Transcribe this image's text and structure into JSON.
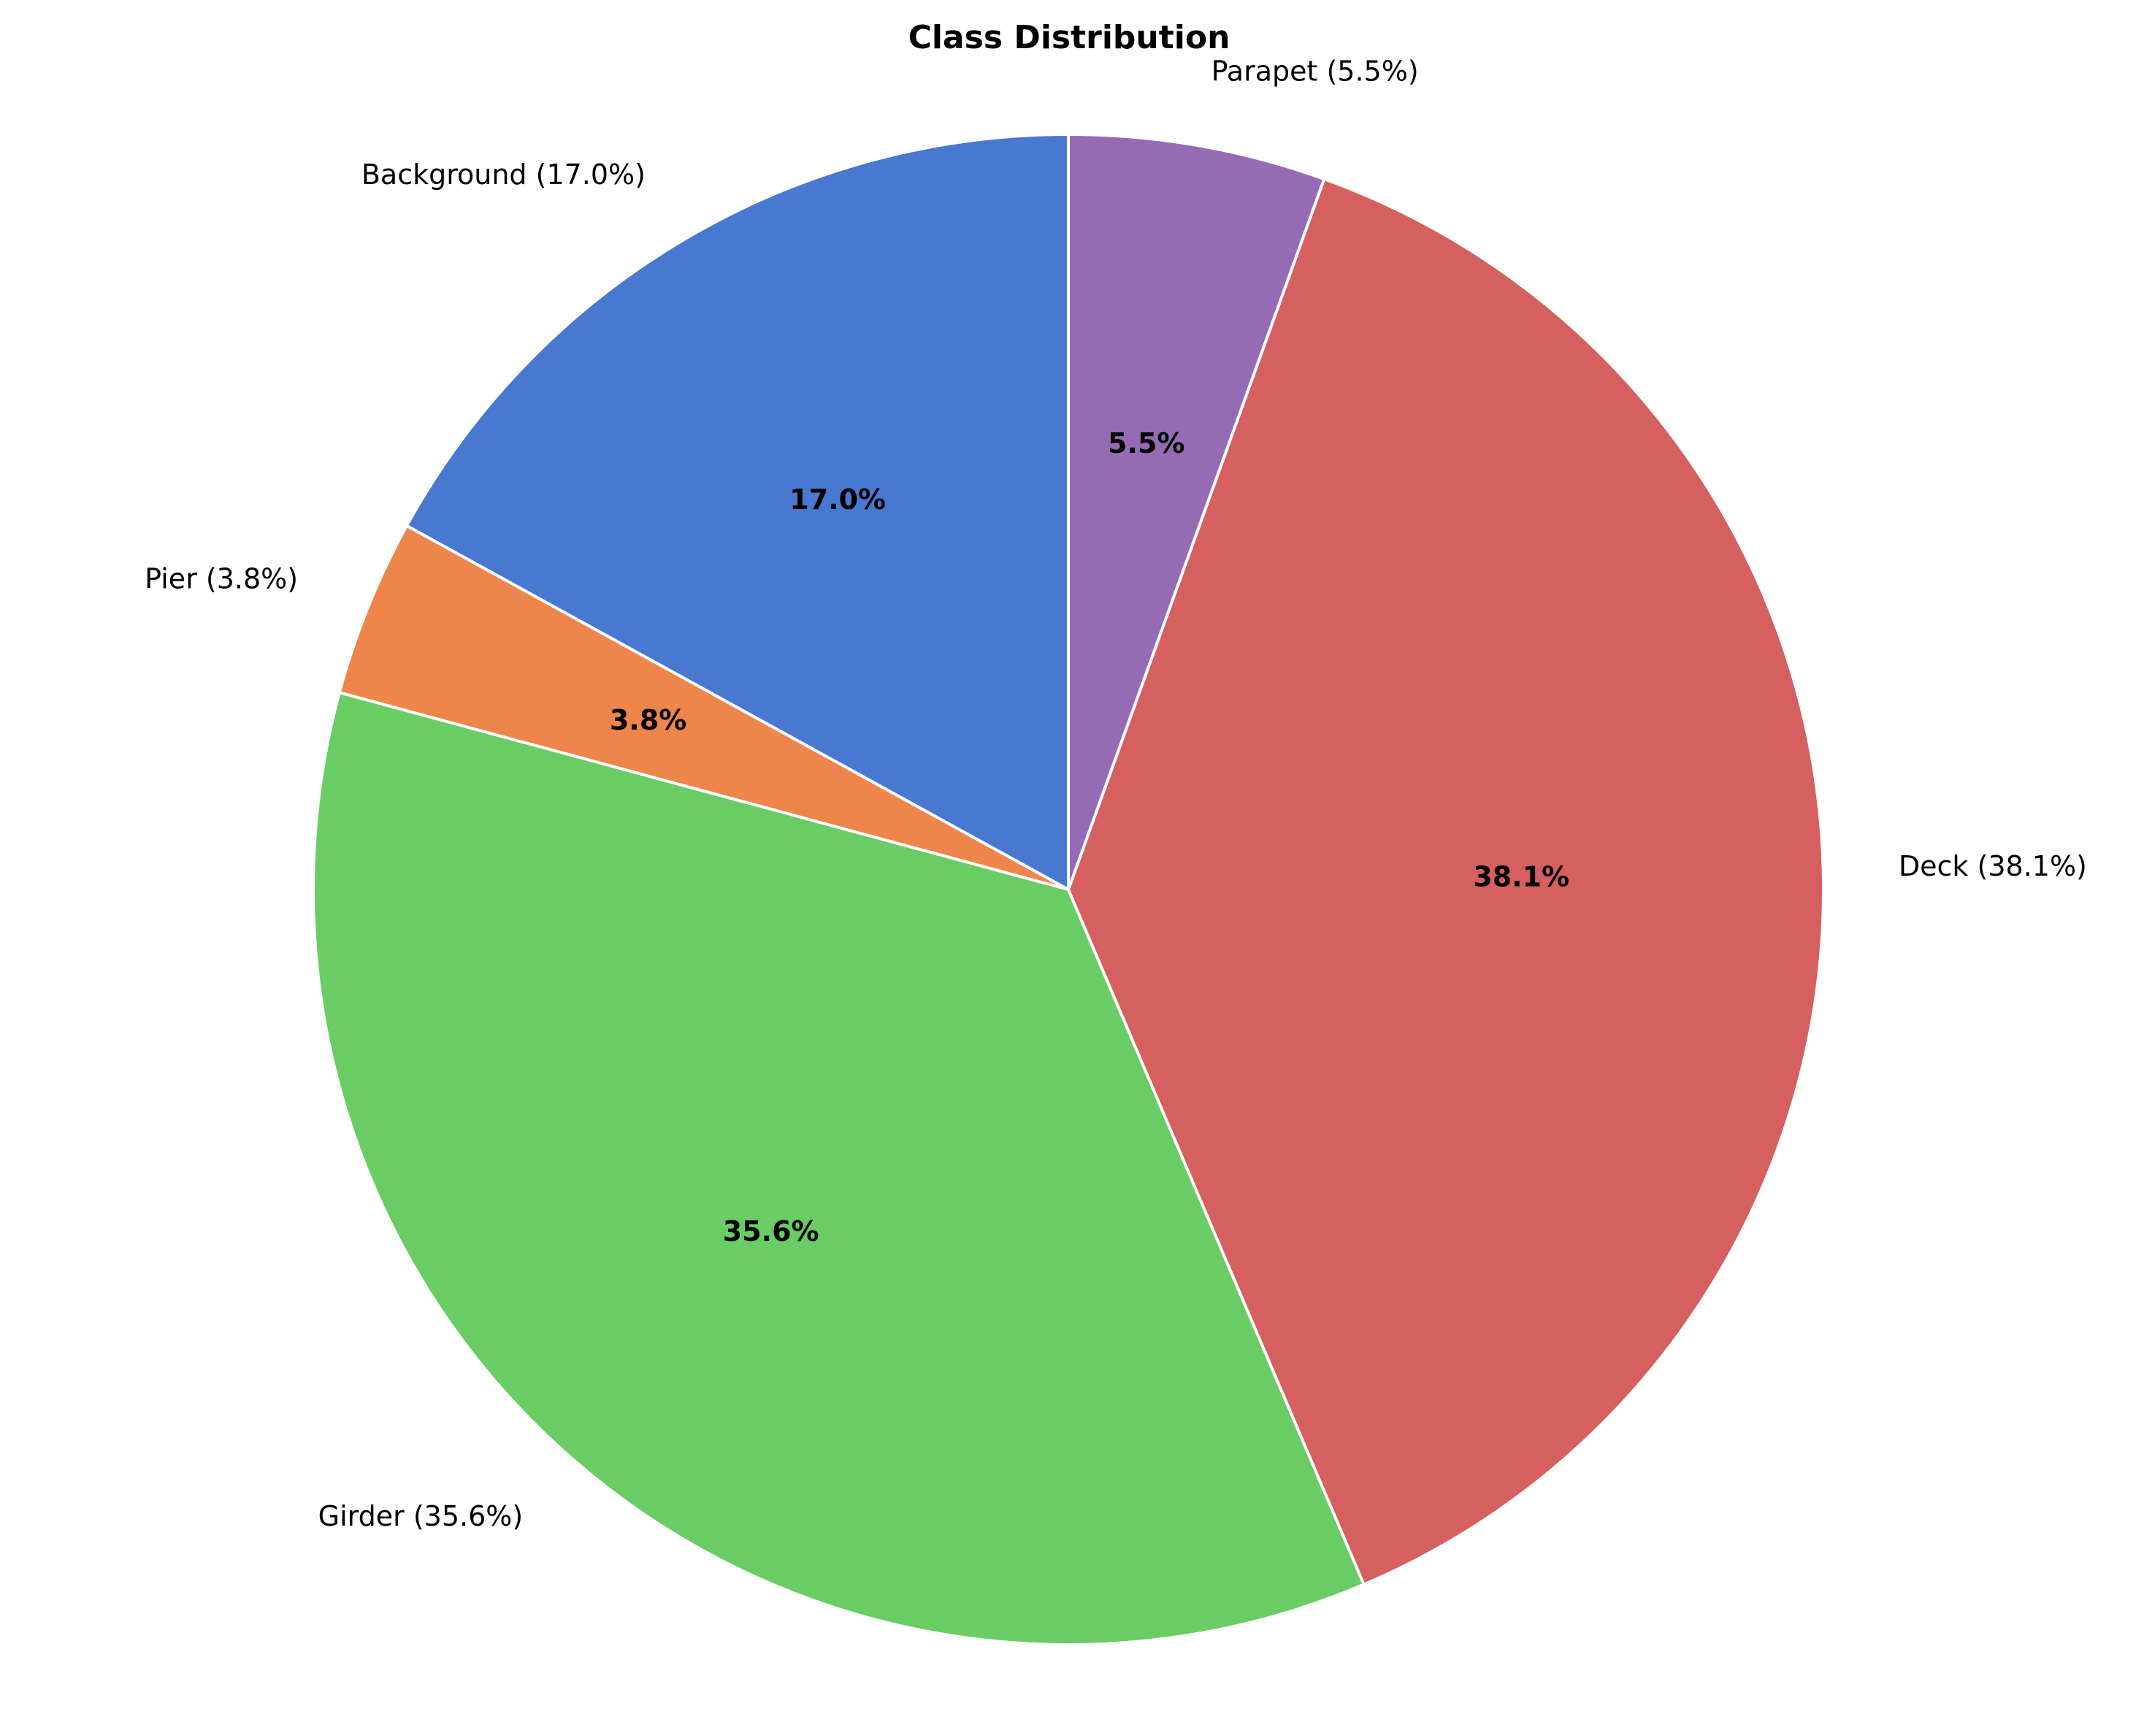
{
  "chart_data": {
    "type": "pie",
    "title": "Class Distribution",
    "start_angle_deg": 90,
    "direction": "counterclockwise",
    "slices": [
      {
        "name": "Background",
        "value": 17.0,
        "color": "#4878cf",
        "outer_label": "Background (17.0%)",
        "inner_label": "17.0%"
      },
      {
        "name": "Pier",
        "value": 3.8,
        "color": "#ee854a",
        "outer_label": "Pier (3.8%)",
        "inner_label": "3.8%"
      },
      {
        "name": "Girder",
        "value": 35.6,
        "color": "#6acc64",
        "outer_label": "Girder (35.6%)",
        "inner_label": "35.6%"
      },
      {
        "name": "Deck",
        "value": 38.1,
        "color": "#d65f5f",
        "outer_label": "Deck (38.1%)",
        "inner_label": "38.1%"
      },
      {
        "name": "Parapet",
        "value": 5.5,
        "color": "#956cb4",
        "outer_label": "Parapet (5.5%)",
        "inner_label": "5.5%"
      }
    ]
  }
}
